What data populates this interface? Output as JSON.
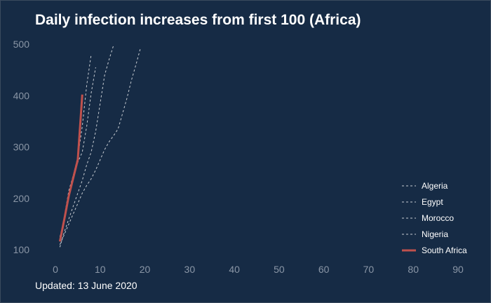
{
  "chart_data": {
    "type": "line",
    "title": "Daily infection increases from first 100 (Africa)",
    "footer": "Updated: 13 June 2020",
    "xlabel": "",
    "ylabel": "",
    "xlim": [
      0,
      90
    ],
    "ylim": [
      100,
      500
    ],
    "x_ticks": [
      0,
      10,
      20,
      30,
      40,
      50,
      60,
      70,
      80,
      90
    ],
    "y_ticks": [
      100,
      200,
      300,
      400,
      500
    ],
    "grid": false,
    "legend_position": "right",
    "series": [
      {
        "name": "Algeria",
        "style": "dashed",
        "color": "#c8cdd3",
        "x": [
          1,
          2,
          3,
          4,
          5,
          6,
          7,
          8
        ],
        "y": [
          118,
          165,
          215,
          245,
          280,
          340,
          420,
          480
        ]
      },
      {
        "name": "Egypt",
        "style": "dashed",
        "color": "#c8cdd3",
        "x": [
          1,
          2,
          3,
          4,
          5,
          6,
          7,
          8,
          9,
          10,
          11,
          12,
          13
        ],
        "y": [
          105,
          135,
          160,
          185,
          210,
          235,
          265,
          290,
          330,
          385,
          440,
          470,
          498
        ]
      },
      {
        "name": "Morocco",
        "style": "dashed",
        "color": "#c8cdd3",
        "x": [
          1,
          2,
          3,
          4,
          5,
          6,
          7,
          8,
          9,
          10,
          11,
          12,
          13,
          14,
          15,
          16,
          17,
          18,
          19
        ],
        "y": [
          110,
          130,
          150,
          170,
          190,
          210,
          225,
          238,
          255,
          275,
          295,
          310,
          322,
          335,
          365,
          395,
          430,
          460,
          492
        ]
      },
      {
        "name": "Nigeria",
        "style": "dashed",
        "color": "#c8cdd3",
        "x": [
          1,
          2,
          3,
          4,
          5,
          6,
          7,
          8,
          9
        ],
        "y": [
          125,
          160,
          200,
          240,
          270,
          290,
          340,
          405,
          455
        ]
      },
      {
        "name": "South Africa",
        "style": "solid",
        "color": "#c0514d",
        "x": [
          1,
          2,
          3,
          4,
          5,
          6
        ],
        "y": [
          116,
          160,
          205,
          240,
          275,
          402
        ]
      }
    ]
  }
}
